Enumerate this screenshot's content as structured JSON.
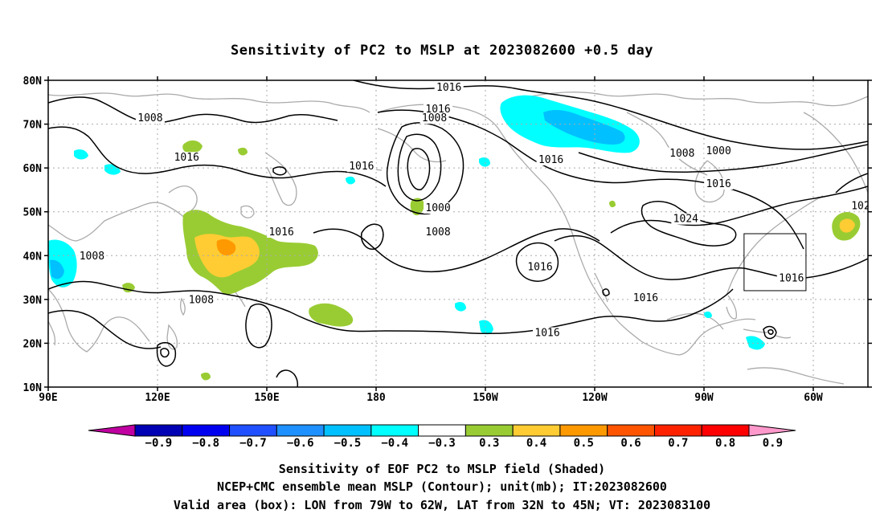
{
  "title": "Sensitivity of PC2 to MSLP at 2023082600 +0.5 day",
  "map": {
    "lat_labels": [
      "80N",
      "70N",
      "60N",
      "50N",
      "40N",
      "30N",
      "20N",
      "10N"
    ],
    "lat_values": [
      80,
      70,
      60,
      50,
      40,
      30,
      20,
      10
    ],
    "lon_labels": [
      "90E",
      "120E",
      "150E",
      "180",
      "150W",
      "120W",
      "90W",
      "60W"
    ],
    "lon_values": [
      90,
      120,
      150,
      180,
      210,
      240,
      270,
      300
    ],
    "lon_range": [
      90,
      315
    ],
    "lat_range": [
      10,
      80
    ],
    "coastline_color": "#aaaaaa",
    "contour_color": "#000000",
    "contour_labels": [
      {
        "text": "1016",
        "lon": 200,
        "lat": 78
      },
      {
        "text": "1008",
        "lon": 118,
        "lat": 71
      },
      {
        "text": "1016",
        "lon": 197,
        "lat": 73
      },
      {
        "text": "1008",
        "lon": 196,
        "lat": 71
      },
      {
        "text": "1008",
        "lon": 264,
        "lat": 63
      },
      {
        "text": "1000",
        "lon": 274,
        "lat": 63.5
      },
      {
        "text": "1016",
        "lon": 128,
        "lat": 62
      },
      {
        "text": "1016",
        "lon": 176,
        "lat": 60
      },
      {
        "text": "1016",
        "lon": 228,
        "lat": 61.5
      },
      {
        "text": "1016",
        "lon": 274,
        "lat": 56
      },
      {
        "text": "1000",
        "lon": 197,
        "lat": 50.5
      },
      {
        "text": "1008",
        "lon": 197,
        "lat": 45
      },
      {
        "text": "1016",
        "lon": 154,
        "lat": 45
      },
      {
        "text": "1024",
        "lon": 265,
        "lat": 48
      },
      {
        "text": "1008",
        "lon": 102,
        "lat": 39.5
      },
      {
        "text": "1016",
        "lon": 225,
        "lat": 37
      },
      {
        "text": "1016",
        "lon": 294,
        "lat": 34.5
      },
      {
        "text": "1008",
        "lon": 132,
        "lat": 29.5
      },
      {
        "text": "1016",
        "lon": 254,
        "lat": 30
      },
      {
        "text": "1016",
        "lon": 227,
        "lat": 22
      },
      {
        "text": "102",
        "lon": 313,
        "lat": 51
      }
    ],
    "valid_box": {
      "lon_min": 281,
      "lon_max": 298,
      "lat_min": 32,
      "lat_max": 45
    }
  },
  "colorbar": {
    "labels": [
      "-0.9",
      "-0.8",
      "-0.7",
      "-0.6",
      "-0.5",
      "-0.4",
      "-0.3",
      "0.3",
      "0.4",
      "0.5",
      "0.6",
      "0.7",
      "0.8",
      "0.9"
    ],
    "colors": [
      "#0000b4",
      "#0000f0",
      "#2050ff",
      "#1e90ff",
      "#00c0ff",
      "#00ffff",
      "#ffffff",
      "#99cc33",
      "#ffcc33",
      "#ff9900",
      "#ff5500",
      "#ff2200",
      "#ff0000"
    ],
    "low_end_color": "#c000a0",
    "high_end_color": "#ff99cc"
  },
  "captions": {
    "line1": "Sensitivity of EOF PC2 to MSLP field (Shaded)",
    "line2": "NCEP+CMC ensemble mean MSLP (Contour); unit(mb); IT:2023082600",
    "line3": "Valid area (box): LON from 79W to 62W, LAT from 32N to 45N; VT: 2023083100"
  }
}
